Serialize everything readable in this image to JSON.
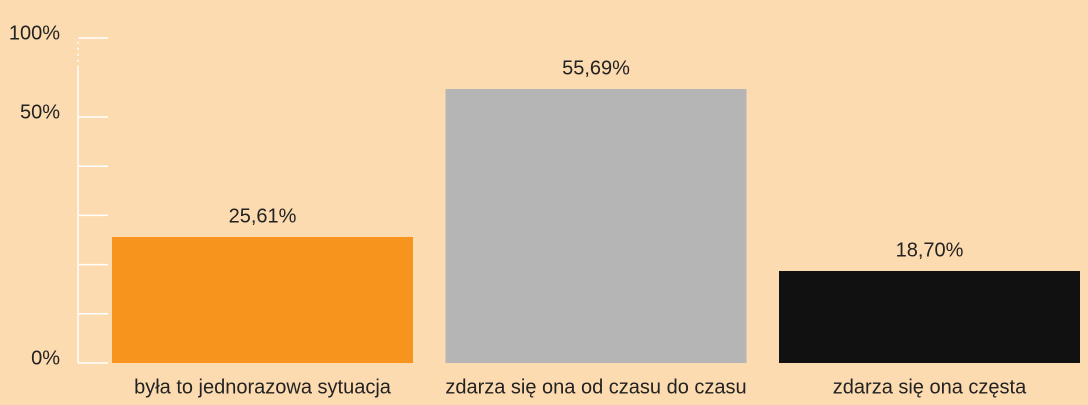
{
  "chart_data": {
    "type": "bar",
    "categories": [
      "była to jednorazowa sytuacja",
      "zdarza się ona od czasu do czasu",
      "zdarza się ona częsta"
    ],
    "values": [
      25.61,
      55.69,
      18.7
    ],
    "value_labels": [
      "25,61%",
      "55,69%",
      "18,70%"
    ],
    "colors": [
      "#f7941d",
      "#b5b5b5",
      "#111111"
    ],
    "ylim": [
      0,
      100
    ],
    "yticks": [
      {
        "value": 0,
        "label": "0%"
      },
      {
        "value": 50,
        "label": "50%"
      },
      {
        "value": 100,
        "label": "100%"
      }
    ],
    "minor_yticks": [
      10,
      20,
      30,
      40
    ],
    "axis_break": true,
    "grid": false
  }
}
